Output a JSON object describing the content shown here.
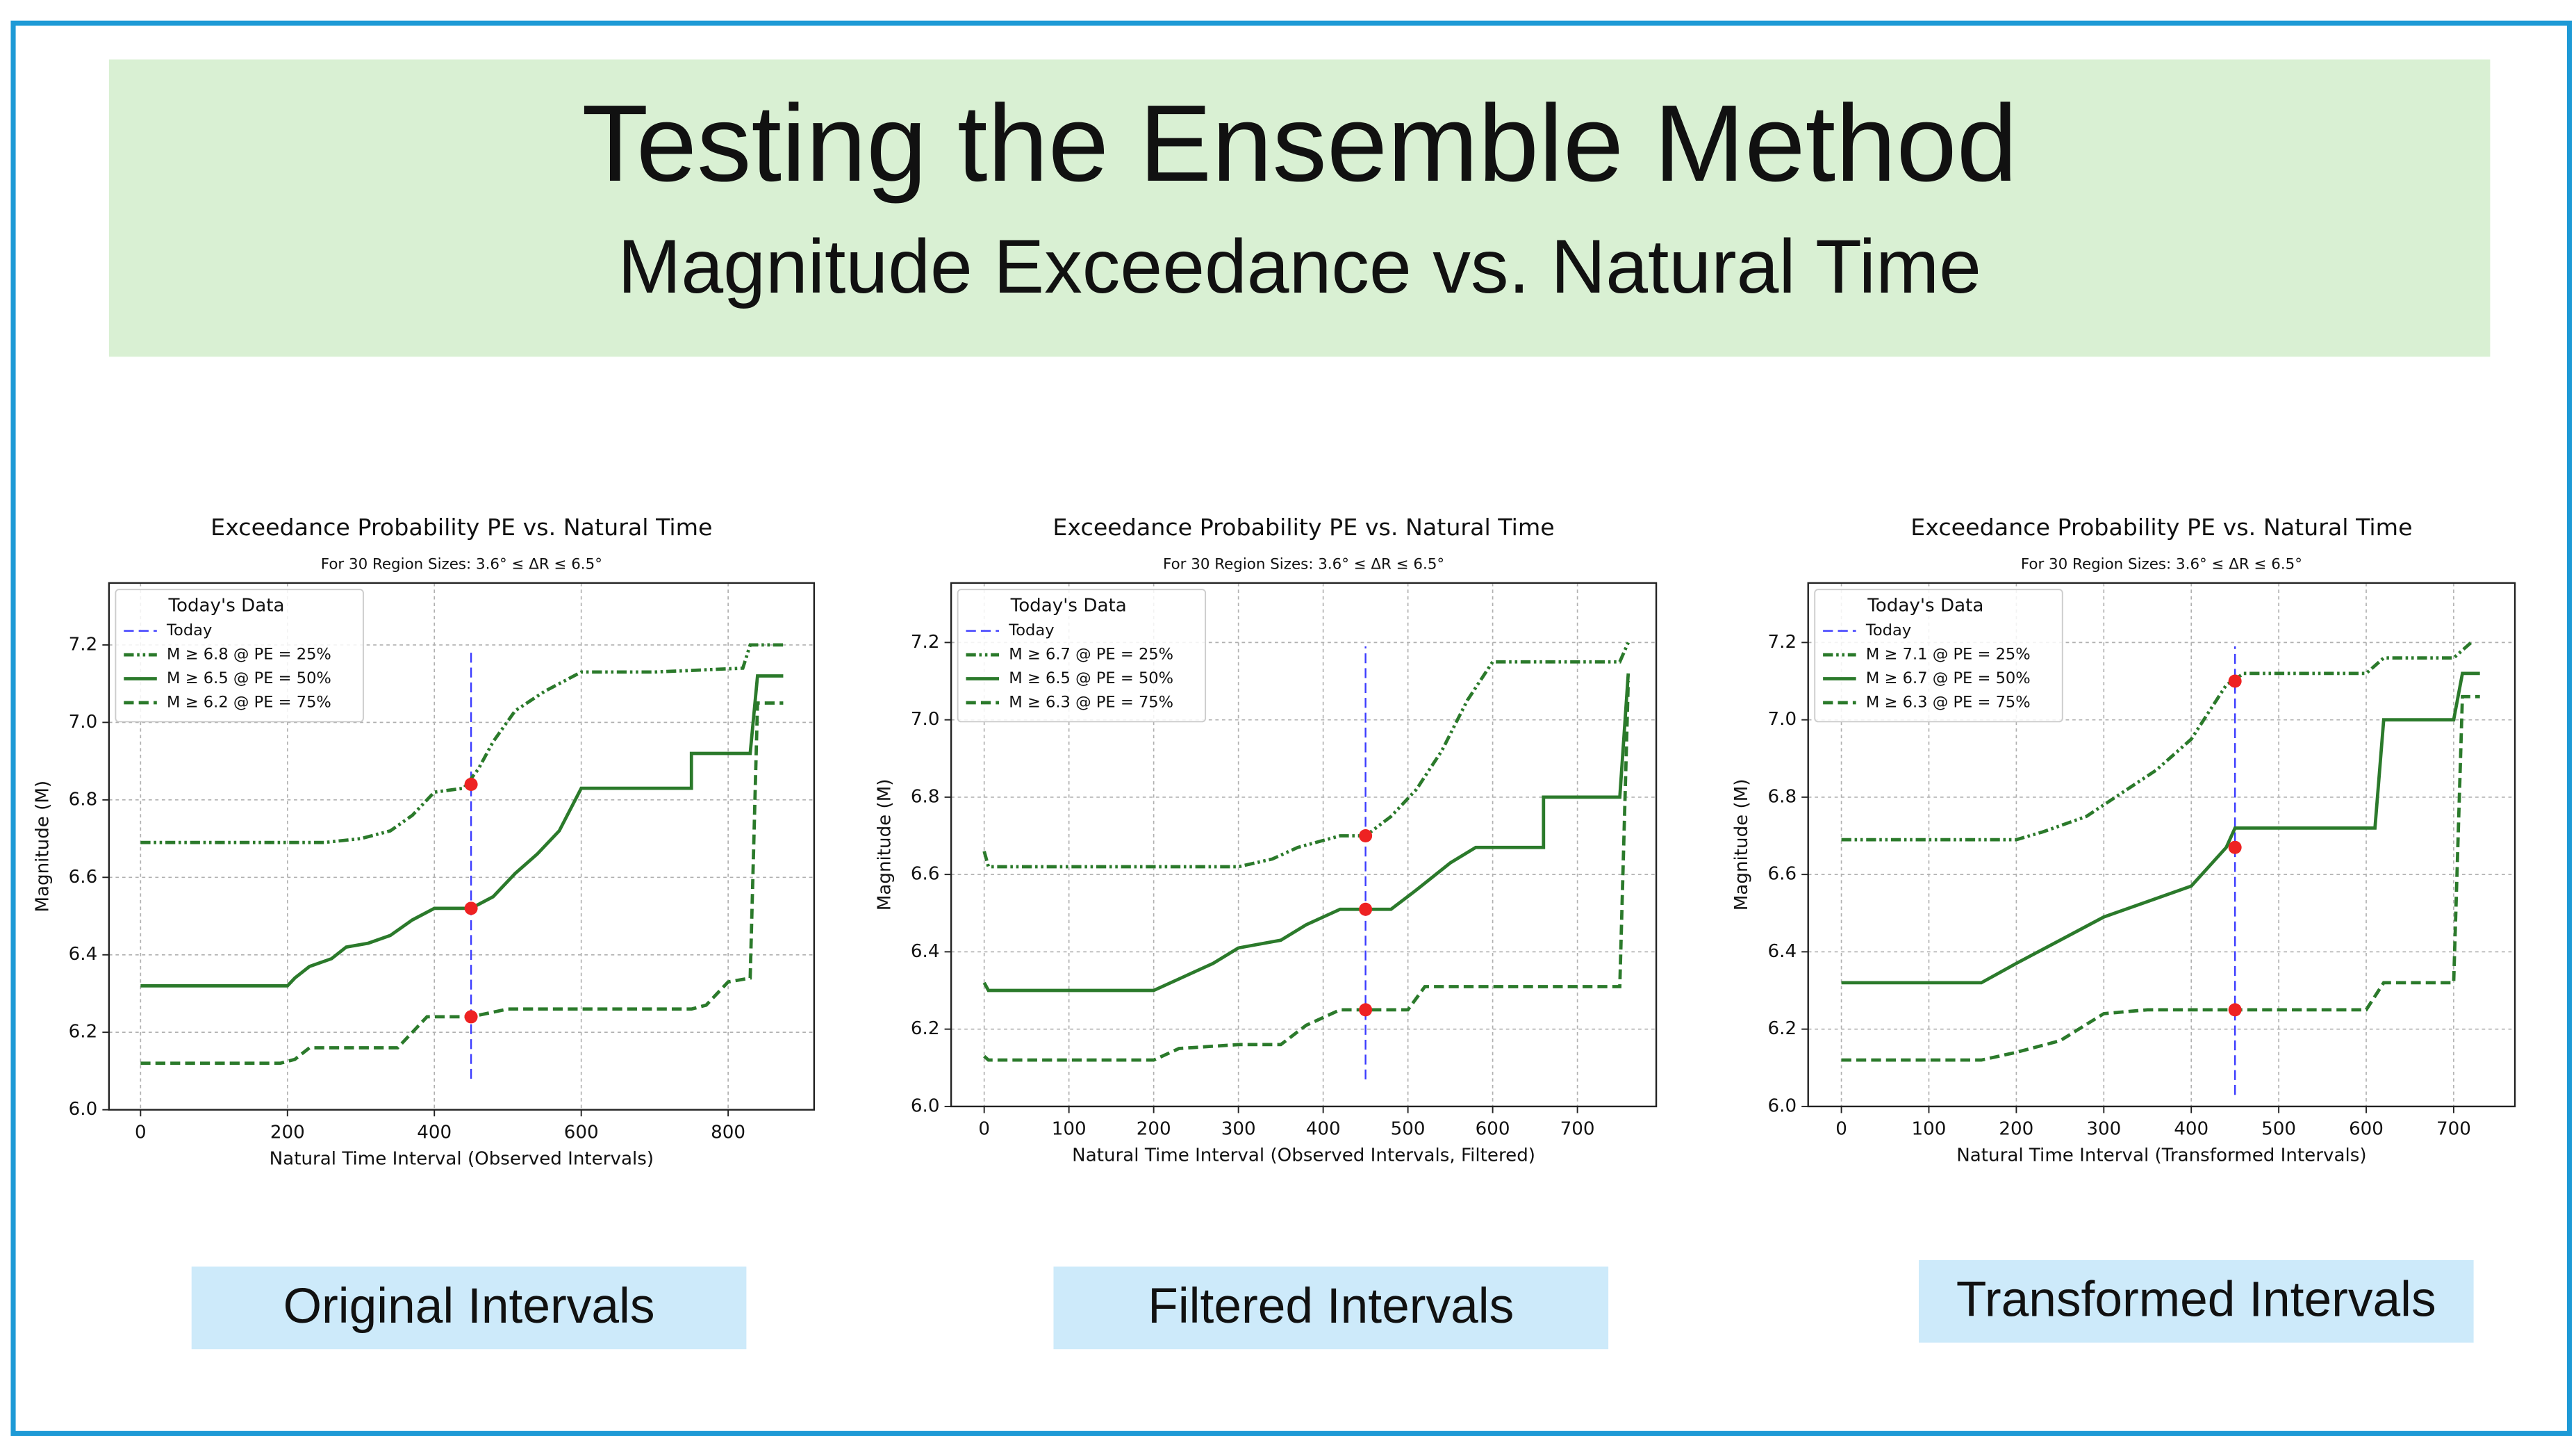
{
  "header": {
    "title": "Testing the Ensemble Method",
    "subtitle": "Magnitude Exceedance vs. Natural Time"
  },
  "captions": [
    "Original Intervals",
    "Filtered Intervals",
    "Transformed Intervals"
  ],
  "chart_data": [
    {
      "type": "line",
      "title": "Exceedance Probability PE vs. Natural Time",
      "subtitle": "For 30 Region Sizes: 3.6° ≤ ΔR ≤ 6.5°",
      "xlabel": "Natural Time Interval (Observed Intervals)",
      "ylabel": "Magnitude (M)",
      "xlim": [
        -43,
        917
      ],
      "ylim": [
        6.0,
        7.36
      ],
      "xticks": [
        0,
        200,
        400,
        600,
        800
      ],
      "yticks": [
        {
          "value": 6.0,
          "label": "6.0"
        },
        {
          "value": 6.2,
          "label": "6.2"
        },
        {
          "value": 6.4,
          "label": "6.4"
        },
        {
          "value": 6.6,
          "label": "6.6"
        },
        {
          "value": 6.8,
          "label": "6.8"
        },
        {
          "value": 7.0,
          "label": "7.0"
        },
        {
          "value": 7.2,
          "label": "7.2"
        }
      ],
      "grid": true,
      "legend": "upper left",
      "legend_title": "Today's Data",
      "series": [
        {
          "name": "Today",
          "color": "#3b3bff",
          "dash": "dashed",
          "x": [
            450,
            450
          ],
          "values": [
            6.08,
            7.19
          ]
        },
        {
          "name": "M ≥ 6.8 @ PE = 25%",
          "color": "#2b7a2b",
          "dash": "dashdotdot",
          "x": [
            0,
            200,
            250,
            300,
            340,
            370,
            400,
            440,
            460,
            480,
            510,
            550,
            600,
            700,
            820,
            830,
            875
          ],
          "values": [
            6.69,
            6.69,
            6.69,
            6.7,
            6.72,
            6.76,
            6.82,
            6.83,
            6.88,
            6.95,
            7.03,
            7.08,
            7.13,
            7.13,
            7.14,
            7.2,
            7.2
          ]
        },
        {
          "name": "M ≥ 6.5 @ PE = 50%",
          "color": "#2b7a2b",
          "dash": "solid",
          "x": [
            0,
            200,
            210,
            230,
            260,
            280,
            310,
            340,
            370,
            400,
            450,
            480,
            510,
            540,
            570,
            600,
            750,
            750,
            830,
            840,
            875
          ],
          "values": [
            6.32,
            6.32,
            6.34,
            6.37,
            6.39,
            6.42,
            6.43,
            6.45,
            6.49,
            6.52,
            6.52,
            6.55,
            6.61,
            6.66,
            6.72,
            6.83,
            6.83,
            6.92,
            6.92,
            7.12,
            7.12
          ]
        },
        {
          "name": "M ≥ 6.2 @ PE = 75%",
          "color": "#2b7a2b",
          "dash": "dashed",
          "x": [
            0,
            190,
            210,
            230,
            350,
            370,
            390,
            450,
            500,
            750,
            770,
            800,
            830,
            840,
            875
          ],
          "values": [
            6.12,
            6.12,
            6.13,
            6.16,
            6.16,
            6.2,
            6.24,
            6.24,
            6.26,
            6.26,
            6.27,
            6.33,
            6.34,
            7.05,
            7.05
          ]
        }
      ],
      "markers": {
        "color": "#ee2222",
        "x": [
          450,
          450,
          450
        ],
        "values": [
          6.84,
          6.52,
          6.24
        ]
      }
    },
    {
      "type": "line",
      "title": "Exceedance Probability PE vs. Natural Time",
      "subtitle": "For 30 Region Sizes: 3.6° ≤ ΔR ≤ 6.5°",
      "xlabel": "Natural Time Interval (Observed Intervals, Filtered)",
      "ylabel": "Magnitude (M)",
      "xlim": [
        -39,
        793
      ],
      "ylim": [
        6.0,
        7.354
      ],
      "xticks": [
        0,
        100,
        200,
        300,
        400,
        500,
        600,
        700
      ],
      "yticks": [
        {
          "value": 6.0,
          "label": "6.0"
        },
        {
          "value": 6.2,
          "label": "6.2"
        },
        {
          "value": 6.4,
          "label": "6.4"
        },
        {
          "value": 6.6,
          "label": "6.6"
        },
        {
          "value": 6.8,
          "label": "6.8"
        },
        {
          "value": 7.0,
          "label": "7.0"
        },
        {
          "value": 7.2,
          "label": "7.2"
        }
      ],
      "grid": true,
      "legend": "upper left",
      "legend_title": "Today's Data",
      "series": [
        {
          "name": "Today",
          "color": "#3b3bff",
          "dash": "dashed",
          "x": [
            450,
            450
          ],
          "values": [
            6.07,
            7.19
          ]
        },
        {
          "name": "M ≥ 6.7 @ PE = 25%",
          "color": "#2b7a2b",
          "dash": "dashdotdot",
          "x": [
            0,
            5,
            300,
            340,
            370,
            420,
            450,
            480,
            510,
            540,
            570,
            600,
            750,
            760
          ],
          "values": [
            6.66,
            6.62,
            6.62,
            6.64,
            6.67,
            6.7,
            6.7,
            6.75,
            6.82,
            6.92,
            7.05,
            7.15,
            7.15,
            7.2
          ]
        },
        {
          "name": "M ≥ 6.5 @ PE = 50%",
          "color": "#2b7a2b",
          "dash": "solid",
          "x": [
            0,
            5,
            200,
            230,
            270,
            300,
            350,
            380,
            420,
            480,
            510,
            550,
            580,
            660,
            660,
            750,
            760
          ],
          "values": [
            6.32,
            6.3,
            6.3,
            6.33,
            6.37,
            6.41,
            6.43,
            6.47,
            6.51,
            6.51,
            6.56,
            6.63,
            6.67,
            6.67,
            6.8,
            6.8,
            7.12
          ]
        },
        {
          "name": "M ≥ 6.3 @ PE = 75%",
          "color": "#2b7a2b",
          "dash": "dashed",
          "x": [
            0,
            5,
            200,
            230,
            300,
            350,
            380,
            420,
            500,
            520,
            750,
            760
          ],
          "values": [
            6.13,
            6.12,
            6.12,
            6.15,
            6.16,
            6.16,
            6.21,
            6.25,
            6.25,
            6.31,
            6.31,
            7.1
          ]
        }
      ],
      "markers": {
        "color": "#ee2222",
        "x": [
          450,
          450,
          450
        ],
        "values": [
          6.7,
          6.51,
          6.25
        ]
      }
    },
    {
      "type": "line",
      "title": "Exceedance Probability PE vs. Natural Time",
      "subtitle": "For 30 Region Sizes: 3.6° ≤ ΔR ≤ 6.5°",
      "xlabel": "Natural Time Interval (Transformed Intervals)",
      "ylabel": "Magnitude (M)",
      "xlim": [
        -38,
        770
      ],
      "ylim": [
        6.0,
        7.354
      ],
      "xticks": [
        0,
        100,
        200,
        300,
        400,
        500,
        600,
        700
      ],
      "yticks": [
        {
          "value": 6.0,
          "label": "6.0"
        },
        {
          "value": 6.2,
          "label": "6.2"
        },
        {
          "value": 6.4,
          "label": "6.4"
        },
        {
          "value": 6.6,
          "label": "6.6"
        },
        {
          "value": 6.8,
          "label": "6.8"
        },
        {
          "value": 7.0,
          "label": "7.0"
        },
        {
          "value": 7.2,
          "label": "7.2"
        }
      ],
      "grid": true,
      "legend": "upper left",
      "legend_title": "Today's Data",
      "series": [
        {
          "name": "Today",
          "color": "#3b3bff",
          "dash": "dashed",
          "x": [
            450,
            450
          ],
          "values": [
            6.03,
            7.19
          ]
        },
        {
          "name": "M ≥ 7.1 @ PE = 25%",
          "color": "#2b7a2b",
          "dash": "dashdotdot",
          "x": [
            0,
            200,
            230,
            280,
            320,
            360,
            400,
            440,
            460,
            600,
            620,
            700,
            720
          ],
          "values": [
            6.69,
            6.69,
            6.71,
            6.75,
            6.81,
            6.87,
            6.95,
            7.09,
            7.12,
            7.12,
            7.16,
            7.16,
            7.2
          ]
        },
        {
          "name": "M ≥ 6.7 @ PE = 50%",
          "color": "#2b7a2b",
          "dash": "solid",
          "x": [
            0,
            160,
            200,
            250,
            300,
            350,
            400,
            440,
            450,
            610,
            620,
            700,
            710,
            730
          ],
          "values": [
            6.32,
            6.32,
            6.37,
            6.43,
            6.49,
            6.53,
            6.57,
            6.67,
            6.72,
            6.72,
            7.0,
            7.0,
            7.12,
            7.12
          ]
        },
        {
          "name": "M ≥ 6.3 @ PE = 75%",
          "color": "#2b7a2b",
          "dash": "dashed",
          "x": [
            0,
            160,
            200,
            250,
            300,
            350,
            450,
            600,
            620,
            700,
            710,
            730
          ],
          "values": [
            6.12,
            6.12,
            6.14,
            6.17,
            6.24,
            6.25,
            6.25,
            6.25,
            6.32,
            6.32,
            7.06,
            7.06
          ]
        }
      ],
      "markers": {
        "color": "#ee2222",
        "x": [
          450,
          450,
          450
        ],
        "values": [
          7.1,
          6.67,
          6.25
        ]
      }
    }
  ]
}
